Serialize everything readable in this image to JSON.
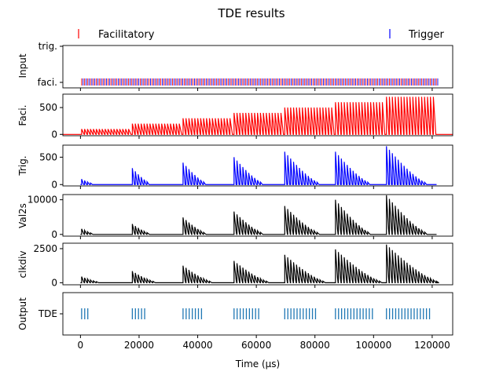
{
  "chart_data": {
    "type": "multi-panel raster and line plot",
    "title": "TDE results",
    "xlabel": "Time (μs)",
    "xlim": [
      -6000,
      127000
    ],
    "xticks": [
      0,
      20000,
      40000,
      60000,
      80000,
      100000,
      120000
    ],
    "legend": {
      "placement": "top",
      "entries": [
        {
          "label": "Facilitatory",
          "color": "#ff0000",
          "marker": "|"
        },
        {
          "label": "Trigger",
          "color": "#0000ff",
          "marker": "|"
        }
      ]
    },
    "burst_starts": [
      0,
      17300,
      34600,
      52000,
      69300,
      86600,
      104000
    ],
    "faci_spike_period": 1000,
    "panels": [
      {
        "name": "input",
        "ylabel": "Input",
        "ylim": [
          -0.1,
          1.1
        ],
        "ytick_labels": [
          "faci.",
          "trig."
        ],
        "series": [
          {
            "name": "Facilitatory",
            "color": "#ff0000",
            "spike_times": {
              "start": 400,
              "end": 121400,
              "step": 1000
            }
          },
          {
            "name": "Trigger",
            "color": "#0000ff",
            "spike_times": {
              "start": 900,
              "end": 121900,
              "step": 1000
            }
          }
        ]
      },
      {
        "name": "faci",
        "ylabel": "Faci.",
        "ylim": [
          -25,
          750
        ],
        "yticks": [
          0,
          500
        ],
        "color": "#ff0000",
        "burst_peak": [
          100,
          200,
          300,
          400,
          500,
          600,
          700
        ],
        "pulses_per_burst": 17
      },
      {
        "name": "trig",
        "ylabel": "Trig.",
        "ylim": [
          -25,
          720
        ],
        "yticks": [
          0,
          500
        ],
        "color": "#0000ff",
        "burst_peak": [
          100,
          300,
          400,
          500,
          600,
          600,
          700
        ],
        "burst_pulses": [
          4,
          6,
          8,
          10,
          12,
          12,
          14
        ]
      },
      {
        "name": "val2s",
        "ylabel": "Val2s",
        "ylim": [
          -500,
          11500
        ],
        "yticks": [
          0,
          10000
        ],
        "color": "#000000",
        "burst_peak": [
          1600,
          3000,
          4900,
          6600,
          8200,
          10000,
          11300
        ],
        "burst_pulses": [
          4,
          6,
          8,
          10,
          12,
          12,
          14
        ]
      },
      {
        "name": "clkdiv",
        "ylabel": "clkdiv",
        "ylim": [
          -150,
          2900
        ],
        "yticks": [
          0,
          2500
        ],
        "color": "#000000",
        "burst_peak": [
          450,
          850,
          1250,
          1600,
          2050,
          2450,
          2800
        ],
        "burst_pulses": [
          6,
          8,
          10,
          12,
          14,
          16,
          18
        ]
      },
      {
        "name": "output",
        "ylabel": "Output",
        "ytick_labels": [
          "TDE"
        ],
        "color": "#1f77b4",
        "spikes_per_burst": [
          3,
          5,
          7,
          9,
          11,
          13,
          15
        ],
        "spike_spacing": 1050
      }
    ]
  }
}
